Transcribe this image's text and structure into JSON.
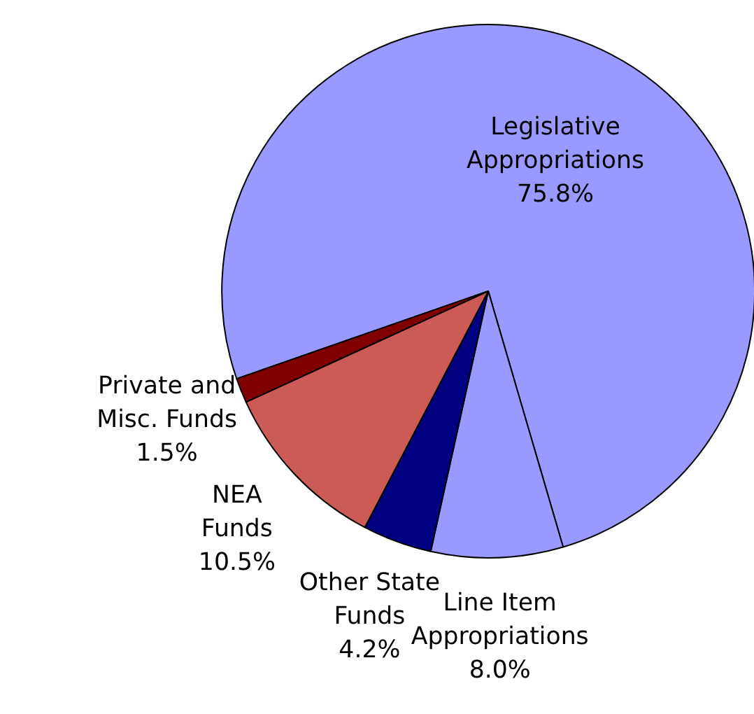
{
  "chart_data": {
    "type": "pie",
    "categories": [
      "Legislative\nAppropriations",
      "Line Item\nAppropriations",
      "Other State\nFunds",
      "NEA\nFunds",
      "Private and\nMisc. Funds"
    ],
    "values": [
      75.8,
      8.0,
      4.2,
      10.5,
      1.5
    ],
    "value_labels": [
      "75.8%",
      "8.0%",
      "4.2%",
      "10.5%",
      "1.5%"
    ],
    "colors": [
      "#9999ff",
      "#9999ff",
      "#000080",
      "#cc5a55",
      "#800000"
    ]
  }
}
